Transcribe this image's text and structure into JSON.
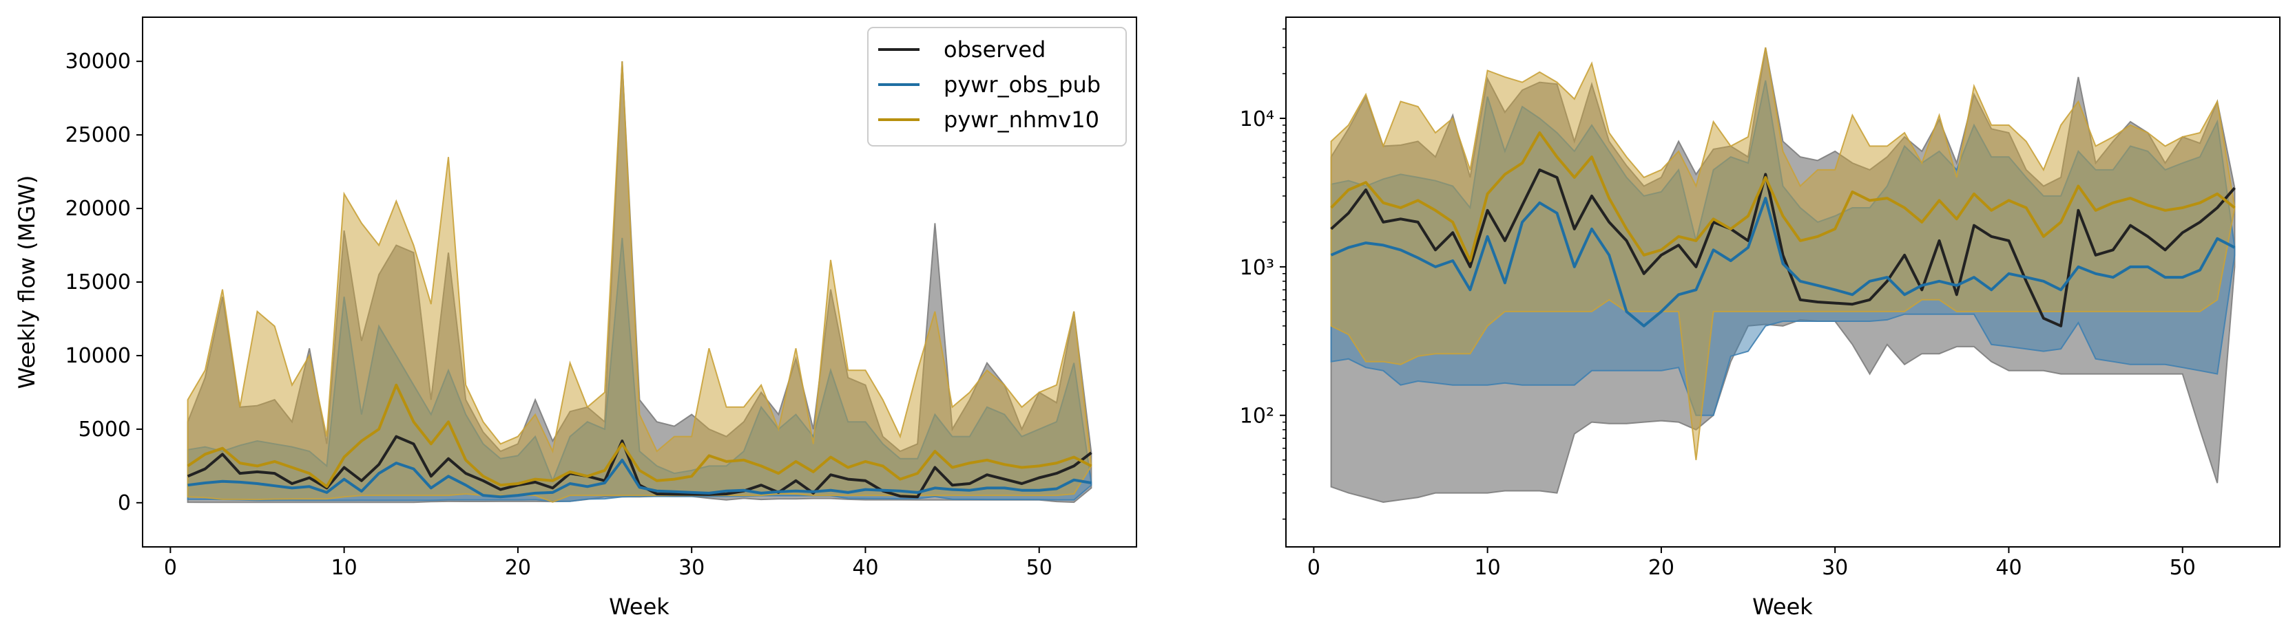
{
  "colors": {
    "observed": "#222222",
    "pywr_obs_pub": "#1f6fa3",
    "pywr_nhmv10": "#b8900e",
    "observed_fill": "#7d7d7d",
    "pywr_obs_pub_fill": "#3f7fb0",
    "pywr_nhmv10_fill": "#c9a23a"
  },
  "legend": {
    "location": "top-right",
    "entries": [
      "observed",
      "pywr_obs_pub",
      "pywr_nhmv10"
    ]
  },
  "chart_data": [
    {
      "type": "line",
      "scale": "linear",
      "xlabel": "Week",
      "ylabel": "Weekly flow (MGW)",
      "xlim": [
        -1.6,
        55.6
      ],
      "ylim": [
        -3000,
        33000
      ],
      "xticks": [
        0,
        10,
        20,
        30,
        40,
        50
      ],
      "yticks": [
        0,
        5000,
        10000,
        15000,
        20000,
        25000,
        30000
      ],
      "xtick_labels": [
        "0",
        "10",
        "20",
        "30",
        "40",
        "50"
      ],
      "ytick_labels": [
        "0",
        "5000",
        "10000",
        "15000",
        "20000",
        "25000",
        "30000"
      ],
      "grid": false,
      "legend": "top-right"
    },
    {
      "type": "line",
      "scale": "log",
      "xlabel": "Week",
      "ylabel": "",
      "xlim": [
        -1.6,
        55.6
      ],
      "ylim": [
        13,
        48000
      ],
      "xticks": [
        0,
        10,
        20,
        30,
        40,
        50
      ],
      "xtick_labels": [
        "0",
        "10",
        "20",
        "30",
        "40",
        "50"
      ],
      "ytick_labels": [
        "10²",
        "10³",
        "10⁴"
      ],
      "grid": false,
      "legend": "none"
    }
  ],
  "weeks": [
    1,
    2,
    3,
    4,
    5,
    6,
    7,
    8,
    9,
    10,
    11,
    12,
    13,
    14,
    15,
    16,
    17,
    18,
    19,
    20,
    21,
    22,
    23,
    24,
    25,
    26,
    27,
    28,
    29,
    30,
    31,
    32,
    33,
    34,
    35,
    36,
    37,
    38,
    39,
    40,
    41,
    42,
    43,
    44,
    45,
    46,
    47,
    48,
    49,
    50,
    51,
    52,
    53
  ],
  "series": [
    {
      "name": "observed",
      "median": [
        1800,
        2300,
        3300,
        2000,
        2100,
        2000,
        1300,
        1700,
        1000,
        2400,
        1500,
        2600,
        4500,
        4000,
        1800,
        3000,
        2000,
        1500,
        900,
        1200,
        1400,
        1000,
        2000,
        1800,
        1500,
        4200,
        1200,
        600,
        580,
        570,
        560,
        600,
        800,
        1200,
        700,
        1500,
        650,
        1900,
        1600,
        1500,
        800,
        450,
        400,
        2400,
        1200,
        1300,
        1900,
        1600,
        1300,
        1700,
        2000,
        2500,
        3400
      ],
      "min": [
        33,
        30,
        28,
        26,
        27,
        28,
        30,
        30,
        30,
        30,
        31,
        31,
        31,
        30,
        75,
        90,
        88,
        88,
        90,
        92,
        90,
        80,
        100,
        230,
        400,
        410,
        400,
        440,
        430,
        430,
        300,
        190,
        300,
        220,
        260,
        260,
        290,
        290,
        230,
        200,
        200,
        200,
        190,
        190,
        190,
        190,
        190,
        190,
        190,
        190,
        80,
        35,
        1000
      ],
      "max": [
        5500,
        8500,
        14000,
        6500,
        6600,
        7000,
        5500,
        10500,
        4000,
        18500,
        11000,
        15500,
        17500,
        17000,
        7000,
        17000,
        7000,
        4800,
        3500,
        4000,
        7000,
        4200,
        6200,
        6500,
        5500,
        30000,
        7000,
        5500,
        5200,
        6000,
        5000,
        4500,
        5500,
        7500,
        6000,
        9800,
        5000,
        14500,
        8500,
        8000,
        4500,
        3500,
        4000,
        19000,
        5000,
        7000,
        9500,
        8000,
        5000,
        7500,
        6800,
        13000,
        3400
      ]
    },
    {
      "name": "pywr_obs_pub",
      "median": [
        1200,
        1350,
        1450,
        1400,
        1300,
        1150,
        1000,
        1100,
        700,
        1600,
        780,
        2000,
        2700,
        2300,
        1000,
        1800,
        1200,
        500,
        400,
        500,
        650,
        700,
        1300,
        1100,
        1350,
        2900,
        1050,
        800,
        750,
        700,
        650,
        800,
        850,
        650,
        750,
        800,
        750,
        850,
        700,
        900,
        850,
        800,
        700,
        1000,
        900,
        850,
        1000,
        1000,
        850,
        850,
        950,
        1550,
        1350
      ],
      "min": [
        230,
        240,
        210,
        200,
        160,
        170,
        165,
        160,
        160,
        160,
        165,
        160,
        160,
        160,
        160,
        200,
        200,
        200,
        200,
        200,
        210,
        100,
        100,
        250,
        270,
        400,
        430,
        430,
        430,
        430,
        430,
        430,
        440,
        480,
        480,
        480,
        480,
        480,
        300,
        290,
        280,
        270,
        280,
        420,
        240,
        230,
        220,
        220,
        220,
        210,
        200,
        190,
        1200
      ],
      "max": [
        3600,
        3800,
        3500,
        3900,
        4200,
        4000,
        3800,
        3500,
        2500,
        14000,
        6000,
        12000,
        10000,
        8000,
        6000,
        9000,
        6000,
        4000,
        3000,
        3200,
        4500,
        1500,
        4500,
        5500,
        5000,
        18000,
        3500,
        2500,
        2000,
        2200,
        2500,
        2500,
        3500,
        6500,
        5000,
        6000,
        4500,
        9000,
        5500,
        5500,
        4000,
        3000,
        3000,
        6000,
        4500,
        4500,
        6500,
        6000,
        4500,
        5000,
        5500,
        9500,
        1350
      ]
    },
    {
      "name": "pywr_nhmv10",
      "median": [
        2500,
        3300,
        3700,
        2700,
        2500,
        2800,
        2400,
        2000,
        1100,
        3100,
        4200,
        5000,
        8000,
        5500,
        4000,
        5500,
        2900,
        1800,
        1200,
        1300,
        1600,
        1500,
        2100,
        1800,
        2200,
        4000,
        2200,
        1500,
        1600,
        1800,
        3200,
        2800,
        2900,
        2500,
        2000,
        2800,
        2100,
        3100,
        2400,
        2800,
        2500,
        1600,
        2000,
        3500,
        2400,
        2700,
        2900,
        2600,
        2400,
        2500,
        2700,
        3100,
        2500
      ],
      "min": [
        400,
        350,
        230,
        230,
        220,
        250,
        260,
        260,
        260,
        400,
        500,
        500,
        500,
        500,
        500,
        500,
        600,
        500,
        500,
        500,
        500,
        50,
        500,
        500,
        500,
        500,
        500,
        500,
        500,
        500,
        500,
        500,
        500,
        500,
        600,
        600,
        500,
        500,
        500,
        500,
        500,
        500,
        500,
        500,
        500,
        500,
        500,
        500,
        500,
        500,
        500,
        600,
        2500
      ],
      "max": [
        7000,
        9000,
        14500,
        6500,
        13000,
        12000,
        8000,
        10000,
        4500,
        21000,
        19000,
        17500,
        20500,
        17500,
        13500,
        23500,
        8000,
        5500,
        4000,
        4500,
        6000,
        3500,
        9500,
        6500,
        7500,
        30000,
        6000,
        3500,
        4500,
        4500,
        10500,
        6500,
        6500,
        8000,
        5000,
        10500,
        4000,
        16500,
        9000,
        9000,
        7000,
        4500,
        9000,
        13000,
        6500,
        7500,
        9000,
        8000,
        6500,
        7500,
        8000,
        13000,
        2500
      ]
    }
  ]
}
